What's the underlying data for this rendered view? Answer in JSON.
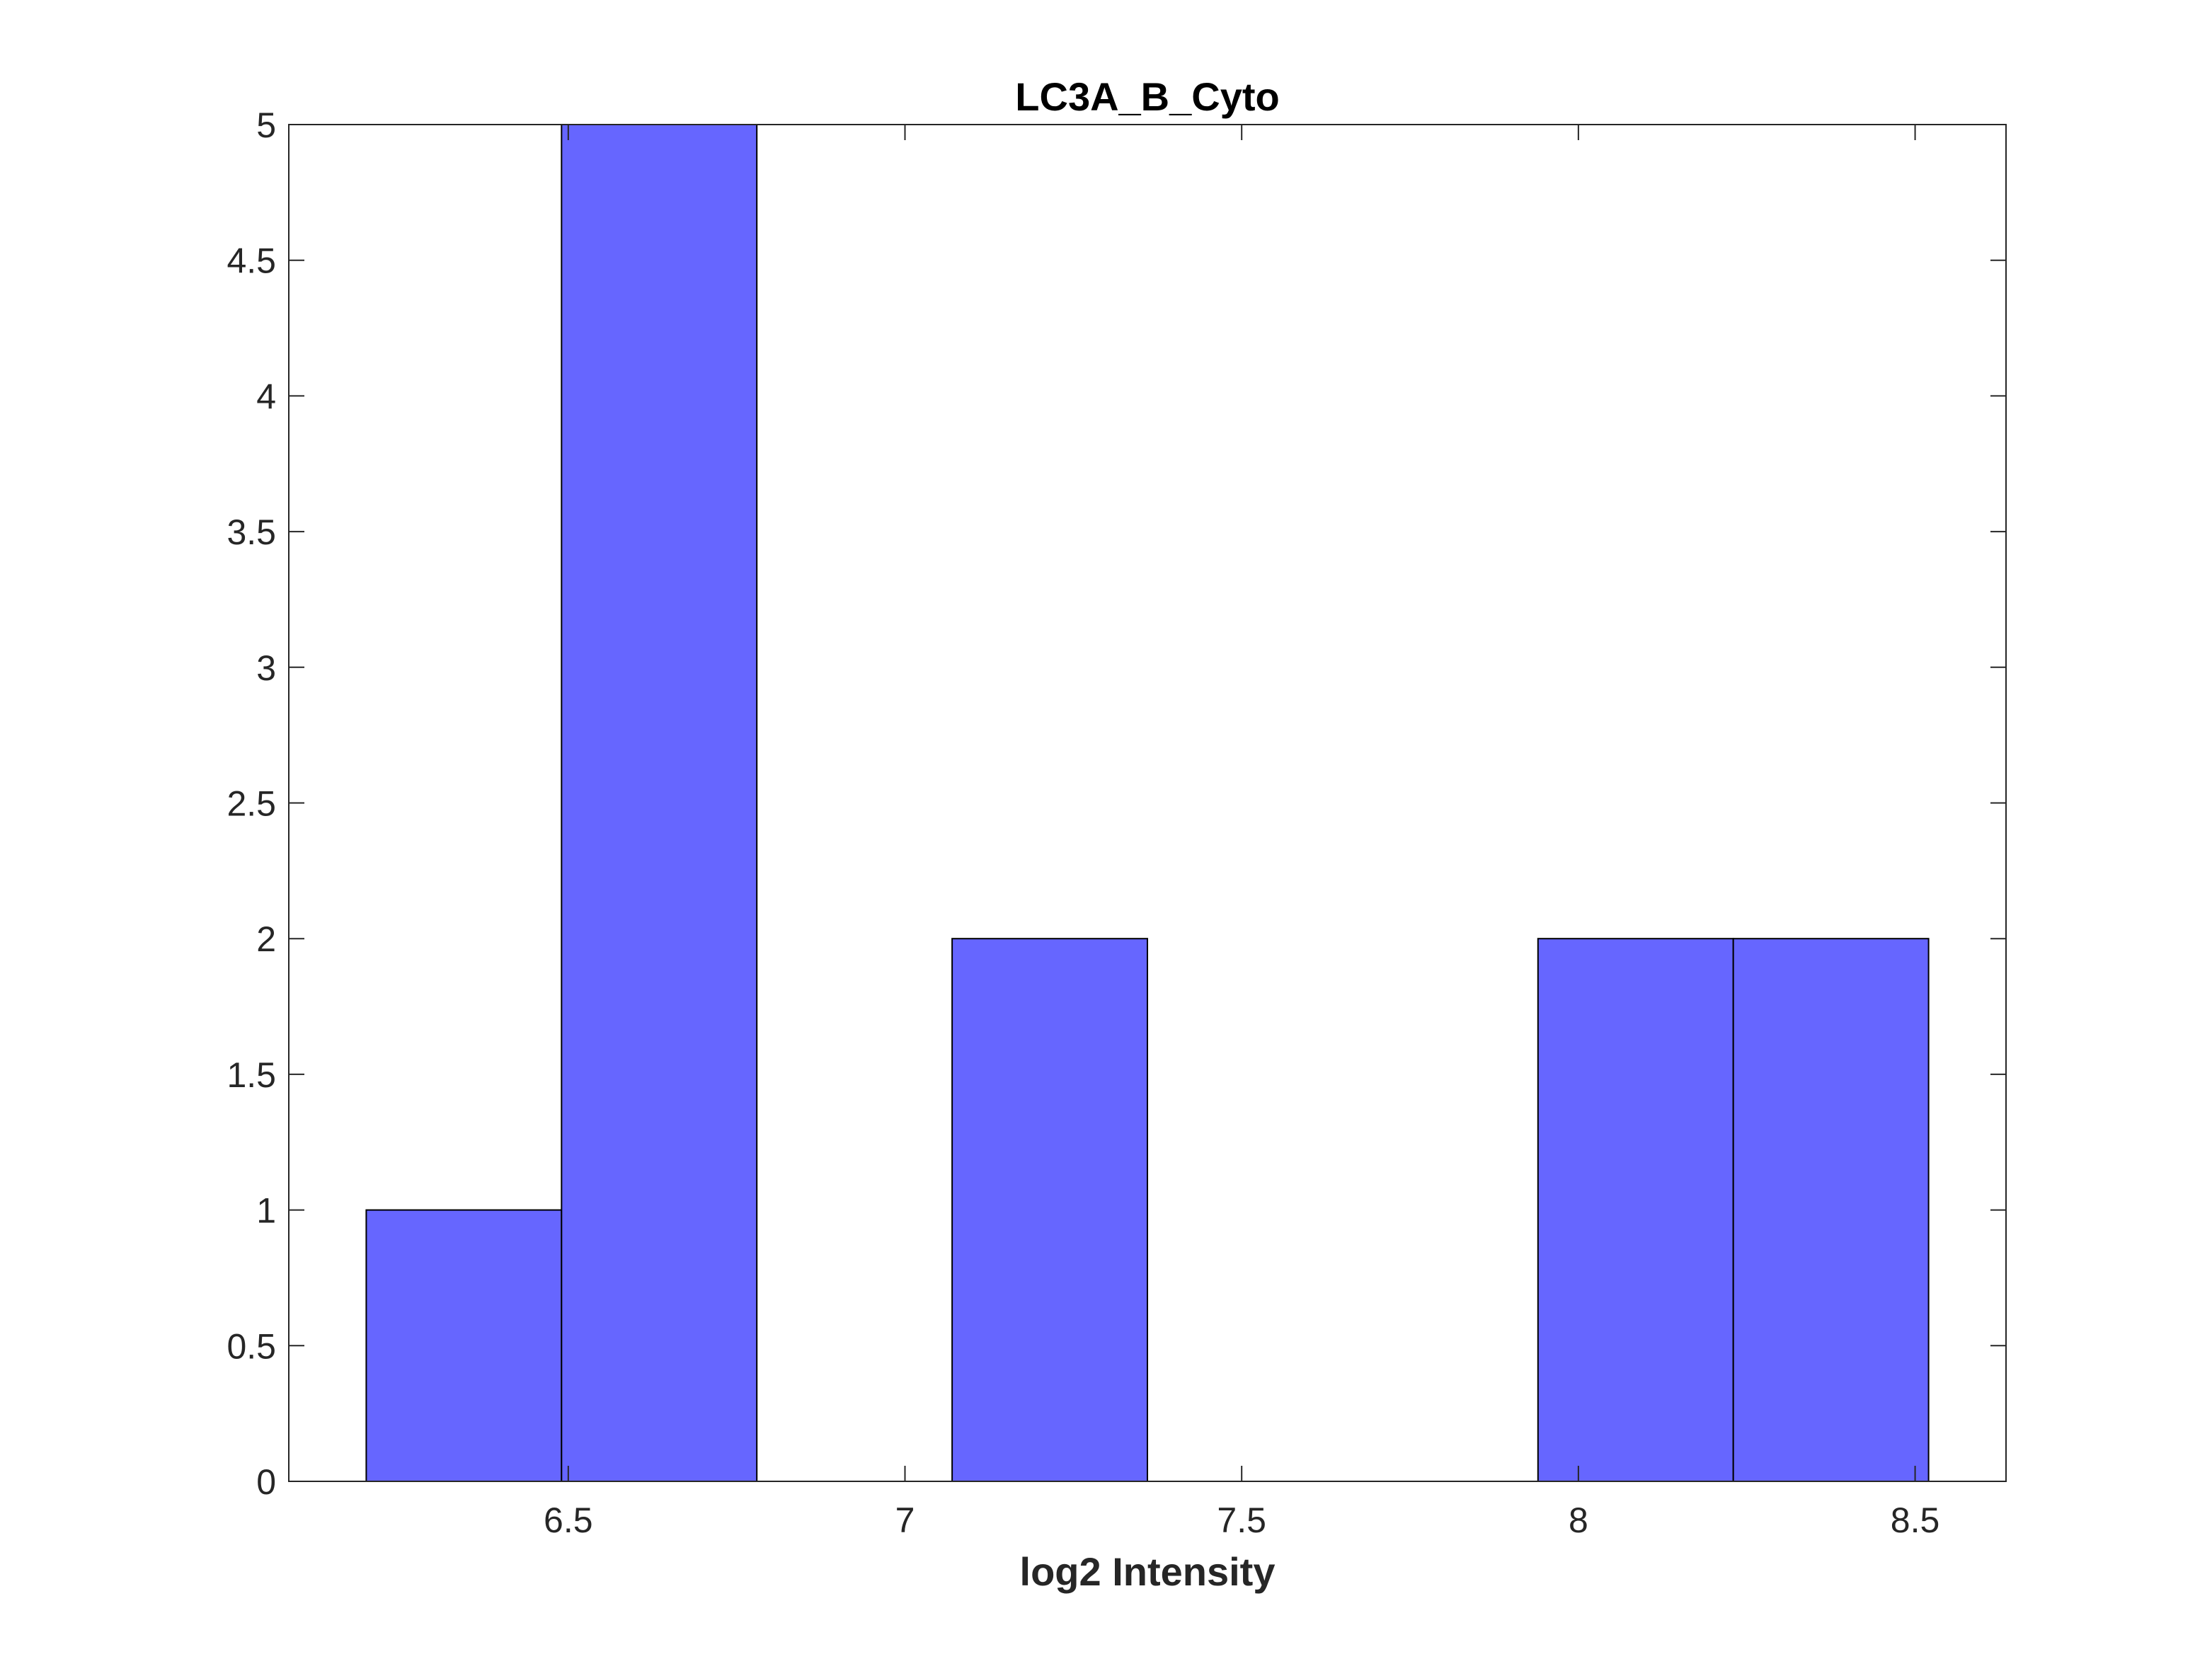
{
  "chart_data": {
    "type": "bar",
    "title": "LC3A_B_Cyto",
    "xlabel": "log2 Intensity",
    "ylabel": "",
    "bar_color": "#6666ff",
    "edge_color": "#000000",
    "xlim": [
      6.085,
      8.635
    ],
    "ylim": [
      0,
      5
    ],
    "xticks": [
      6.5,
      7,
      7.5,
      8,
      8.5
    ],
    "xtick_labels": [
      "6.5",
      "7",
      "7.5",
      "8",
      "8.5"
    ],
    "yticks": [
      0,
      0.5,
      1,
      1.5,
      2,
      2.5,
      3,
      3.5,
      4,
      4.5,
      5
    ],
    "ytick_labels": [
      "0",
      "0.5",
      "1",
      "1.5",
      "2",
      "2.5",
      "3",
      "3.5",
      "4",
      "4.5",
      "5"
    ],
    "bins": [
      {
        "x0": 6.2,
        "x1": 6.49,
        "count": 1
      },
      {
        "x0": 6.49,
        "x1": 6.78,
        "count": 5
      },
      {
        "x0": 6.78,
        "x1": 7.07,
        "count": 0
      },
      {
        "x0": 7.07,
        "x1": 7.36,
        "count": 2
      },
      {
        "x0": 7.36,
        "x1": 7.65,
        "count": 0
      },
      {
        "x0": 7.65,
        "x1": 7.94,
        "count": 0
      },
      {
        "x0": 7.94,
        "x1": 8.23,
        "count": 2
      },
      {
        "x0": 8.23,
        "x1": 8.52,
        "count": 2
      }
    ],
    "grid": false
  }
}
